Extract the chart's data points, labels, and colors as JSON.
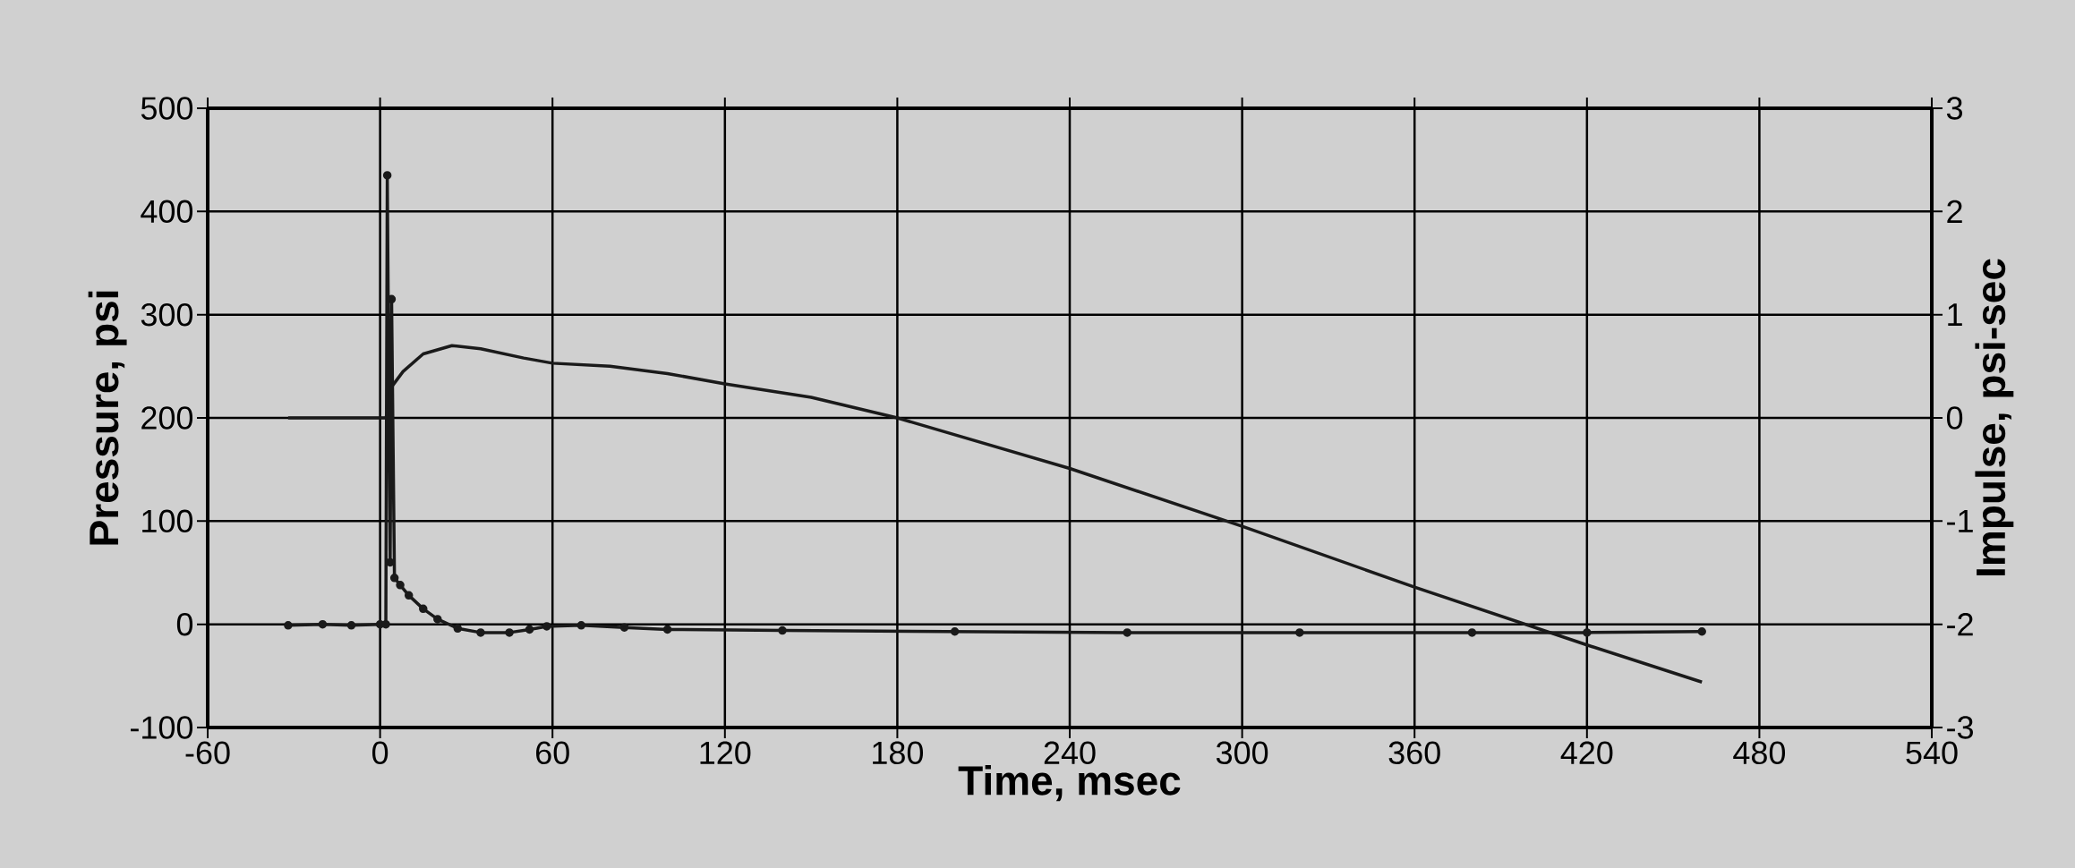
{
  "chart_data": {
    "type": "line",
    "xlabel": "Time, msec",
    "ylabel": "Pressure, psi",
    "y2label": "Impulse, psi-sec",
    "xlim": [
      -60,
      540
    ],
    "xticks": [
      -60,
      0,
      60,
      120,
      180,
      240,
      300,
      360,
      420,
      480,
      540
    ],
    "ylim": [
      -100,
      500
    ],
    "yticks": [
      -100,
      0,
      100,
      200,
      300,
      400,
      500
    ],
    "y2lim": [
      -3,
      3
    ],
    "y2ticks": [
      -3,
      -2,
      -1,
      0,
      1,
      2,
      3
    ],
    "grid": true,
    "series": [
      {
        "marker": "circle",
        "color": "#1a1a1a",
        "axis": "y",
        "x": [
          -32,
          -20,
          -10,
          0,
          2,
          2.5,
          3.5,
          4,
          5,
          7,
          10,
          15,
          20,
          27,
          35,
          45,
          52,
          58,
          70,
          85,
          100,
          140,
          200,
          260,
          320,
          380,
          420,
          460
        ],
        "values": [
          -1,
          0,
          -1,
          0,
          0,
          435,
          60,
          315,
          45,
          38,
          28,
          15,
          5,
          -4,
          -8,
          -8,
          -5,
          -2,
          -1,
          -3,
          -5,
          -6,
          -7,
          -8,
          -8,
          -8,
          -8,
          -7
        ]
      },
      {
        "marker": "none",
        "color": "#1a1a1a",
        "axis": "y2",
        "x": [
          -32,
          2,
          3,
          4,
          8,
          15,
          25,
          35,
          50,
          60,
          80,
          100,
          120,
          150,
          180,
          240,
          300,
          360,
          420,
          460
        ],
        "values": [
          0,
          0,
          0.1,
          0.3,
          0.45,
          0.62,
          0.7,
          0.67,
          0.58,
          0.53,
          0.5,
          0.43,
          0.33,
          0.2,
          0,
          -0.49,
          -1.05,
          -1.64,
          -2.2,
          -2.56
        ]
      }
    ]
  }
}
